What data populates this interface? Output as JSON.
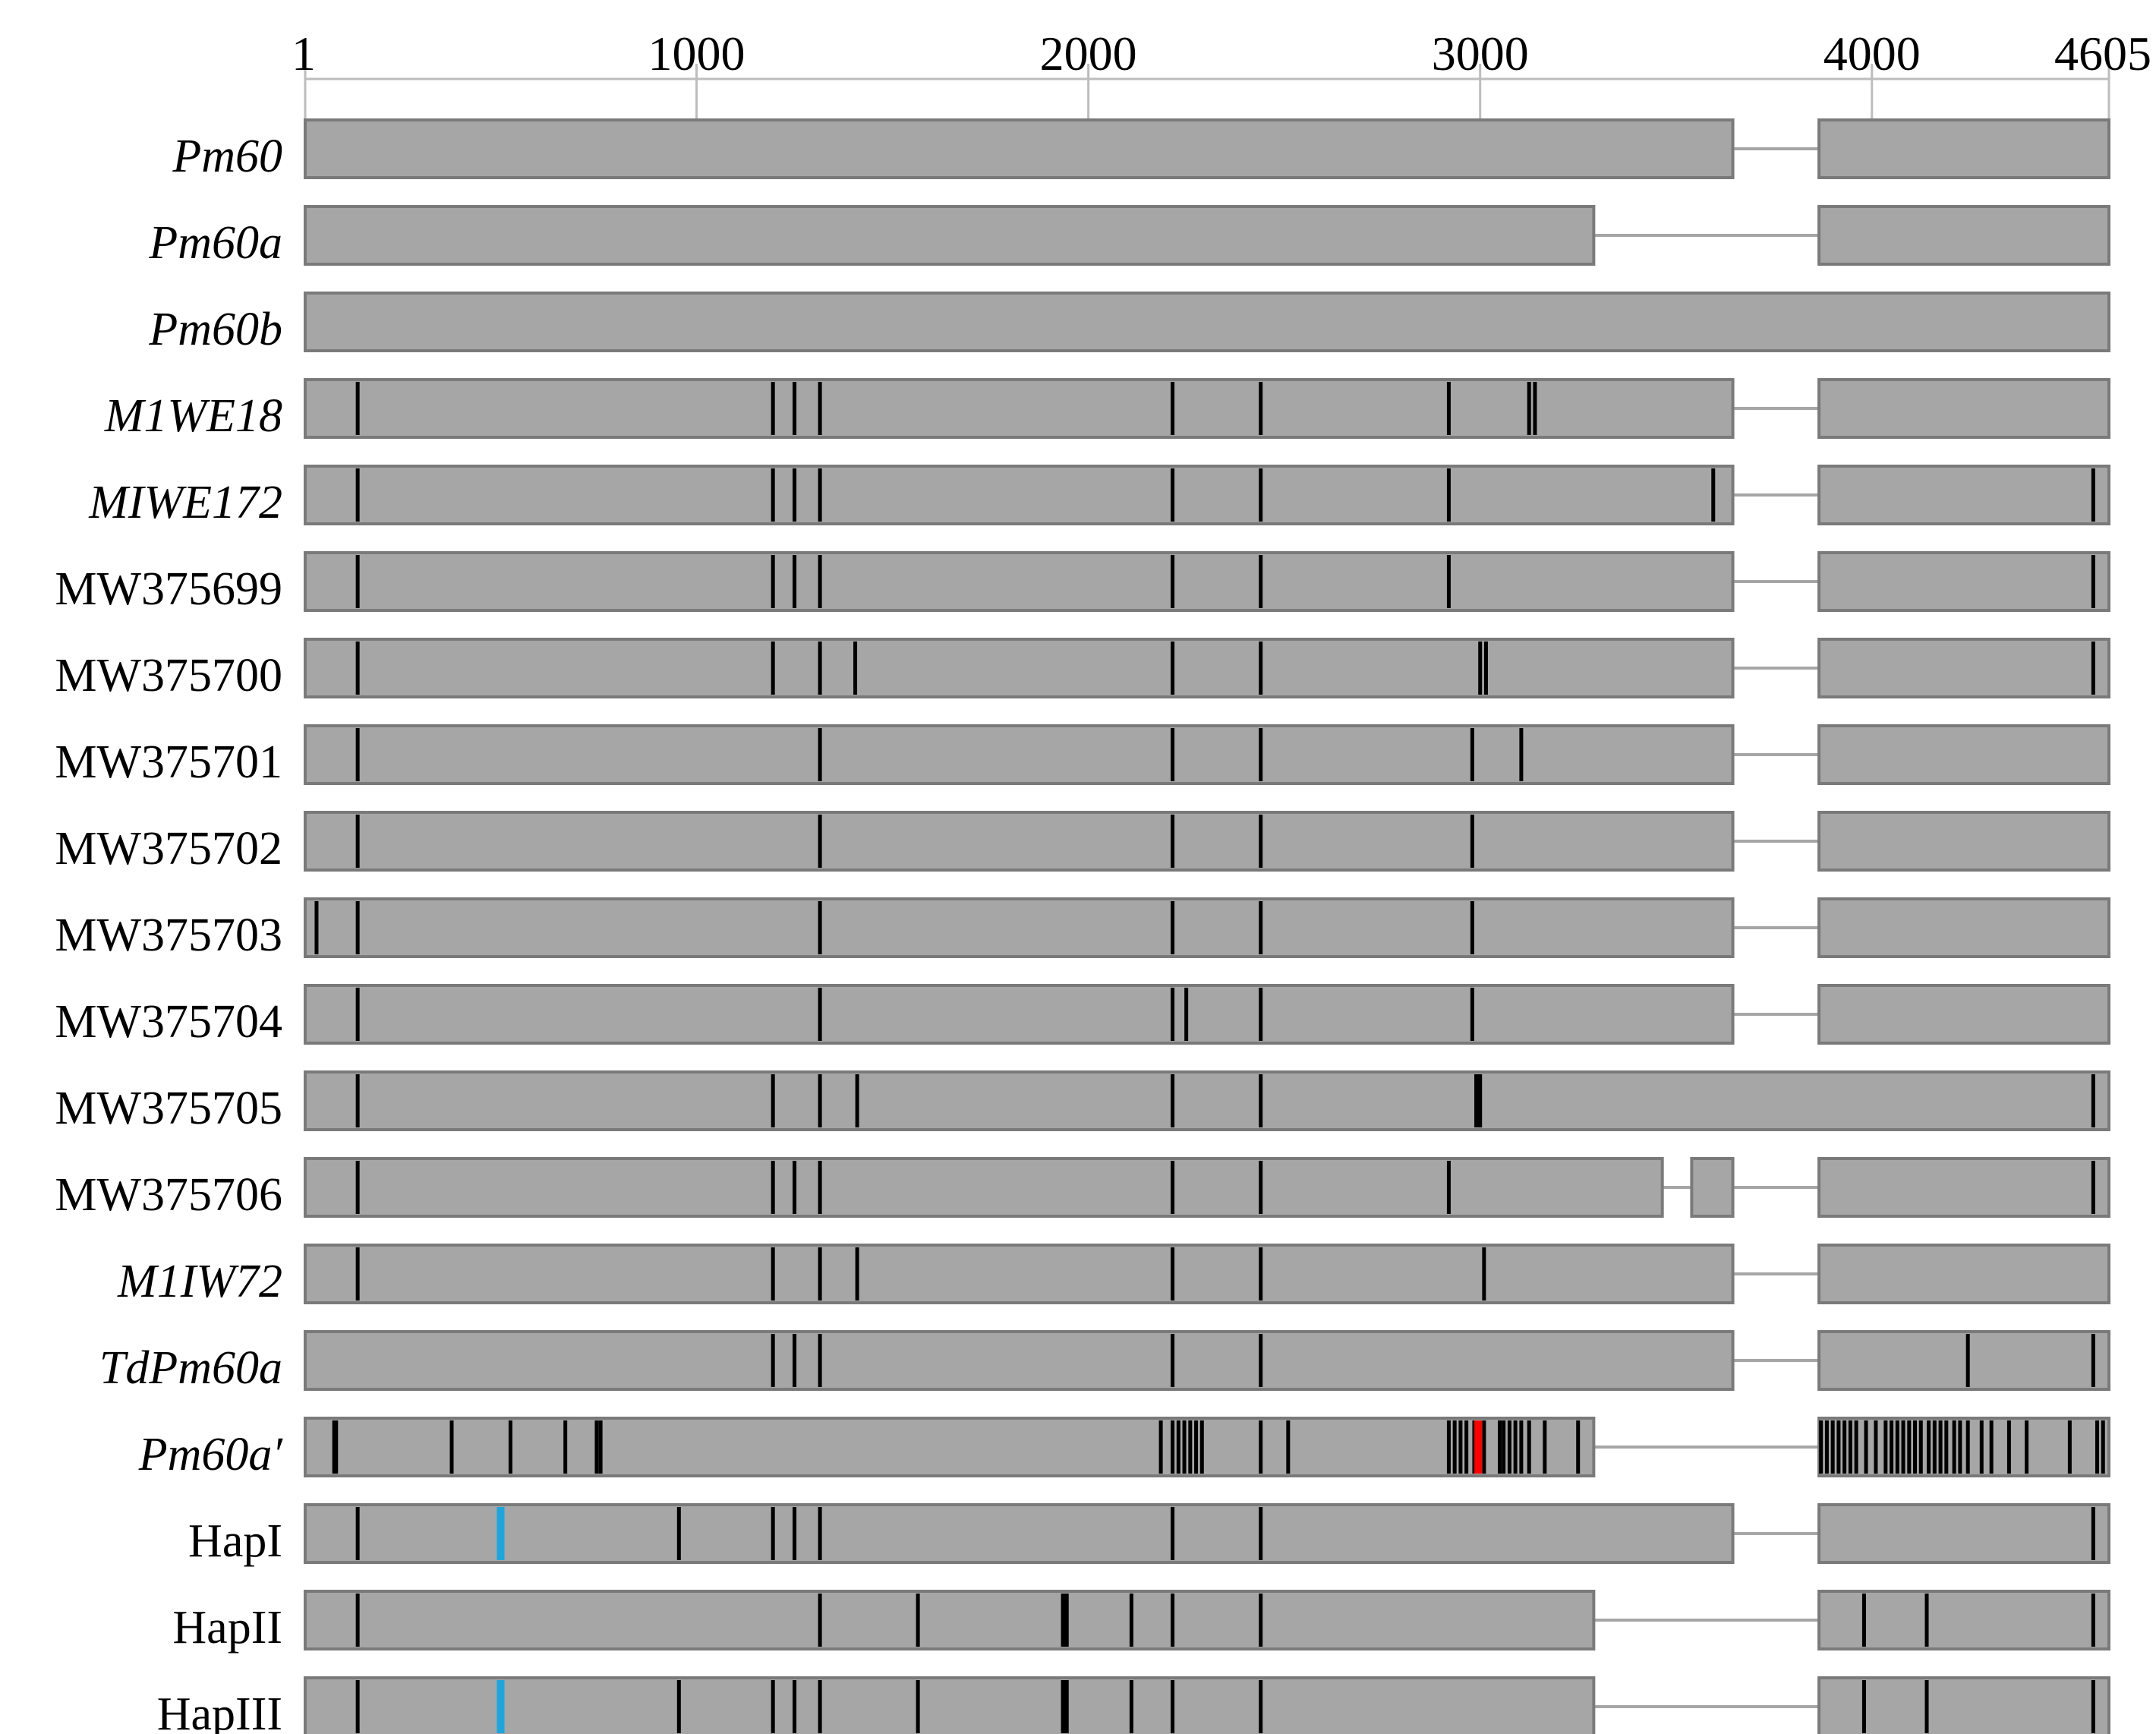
{
  "figure": {
    "axis": {
      "ticks": [
        {
          "label": "1",
          "pos": 1
        },
        {
          "label": "1000",
          "pos": 1000
        },
        {
          "label": "2000",
          "pos": 2000
        },
        {
          "label": "3000",
          "pos": 3000
        },
        {
          "label": "4000",
          "pos": 4000
        },
        {
          "label": "4605",
          "pos": 4605
        }
      ]
    },
    "colors": {
      "exon": "#a6a6a6",
      "exon_border": "#7a7a7a",
      "intron": "#a6a6a6",
      "snp": "#000000",
      "red_variant": "#ff0000",
      "cyan_variant": "#1aa7e0"
    },
    "rows": [
      {
        "name": "Pm60",
        "italic": true,
        "exons": [
          [
            1,
            3645
          ],
          [
            3865,
            4605
          ]
        ],
        "snps": []
      },
      {
        "name": "Pm60a",
        "italic": true,
        "exons": [
          [
            1,
            3290
          ],
          [
            3865,
            4605
          ]
        ],
        "snps": []
      },
      {
        "name": "Pm60b",
        "italic": true,
        "exons": [
          [
            1,
            4605
          ]
        ],
        "snps": []
      },
      {
        "name": "M1WE18",
        "italic": true,
        "exons": [
          [
            1,
            3645
          ],
          [
            3865,
            4605
          ]
        ],
        "snps": [
          135,
          1195,
          1250,
          1315,
          2215,
          2440,
          2920,
          3125,
          3140
        ]
      },
      {
        "name": "MIWE172",
        "italic": true,
        "exons": [
          [
            1,
            3645
          ],
          [
            3865,
            4605
          ]
        ],
        "snps": [
          135,
          1195,
          1250,
          1315,
          2215,
          2440,
          2920,
          3595,
          4565
        ]
      },
      {
        "name": "MW375699",
        "italic": false,
        "exons": [
          [
            1,
            3645
          ],
          [
            3865,
            4605
          ]
        ],
        "snps": [
          135,
          1195,
          1250,
          1315,
          2215,
          2440,
          2920,
          4565
        ]
      },
      {
        "name": "MW375700",
        "italic": false,
        "exons": [
          [
            1,
            3645
          ],
          [
            3865,
            4605
          ]
        ],
        "snps": [
          135,
          1195,
          1315,
          1405,
          2215,
          2440,
          3000,
          3015,
          4565
        ]
      },
      {
        "name": "MW375701",
        "italic": false,
        "exons": [
          [
            1,
            3645
          ],
          [
            3865,
            4605
          ]
        ],
        "snps": [
          135,
          1315,
          2215,
          2440,
          2980,
          3105
        ]
      },
      {
        "name": "MW375702",
        "italic": false,
        "exons": [
          [
            1,
            3645
          ],
          [
            3865,
            4605
          ]
        ],
        "snps": [
          135,
          1315,
          2215,
          2440,
          2980
        ]
      },
      {
        "name": "MW375703",
        "italic": false,
        "exons": [
          [
            1,
            3645
          ],
          [
            3865,
            4605
          ]
        ],
        "snps": [
          30,
          135,
          1315,
          2215,
          2440,
          2980
        ]
      },
      {
        "name": "MW375704",
        "italic": false,
        "exons": [
          [
            1,
            3645
          ],
          [
            3865,
            4605
          ]
        ],
        "snps": [
          135,
          1315,
          2215,
          2250,
          2440,
          2980
        ]
      },
      {
        "name": "MW375705",
        "italic": false,
        "exons": [
          [
            1,
            4605
          ]
        ],
        "snps": [
          135,
          1195,
          1315,
          1410,
          2215,
          2440,
          2990,
          2995,
          3000,
          4565
        ]
      },
      {
        "name": "MW375706",
        "italic": false,
        "exons": [
          [
            1,
            3465
          ],
          [
            3540,
            3645
          ],
          [
            3865,
            4605
          ]
        ],
        "snps": [
          135,
          1195,
          1250,
          1315,
          2215,
          2440,
          2920,
          4565
        ]
      },
      {
        "name": "M1IW72",
        "italic": true,
        "exons": [
          [
            1,
            3645
          ],
          [
            3865,
            4605
          ]
        ],
        "snps": [
          135,
          1195,
          1315,
          1410,
          2215,
          2440,
          3010
        ]
      },
      {
        "name": "TdPm60a",
        "italic": true,
        "exons": [
          [
            1,
            3645
          ],
          [
            3865,
            4605
          ]
        ],
        "snps": [
          1195,
          1250,
          1315,
          2215,
          2440,
          4245,
          4565
        ]
      },
      {
        "name": "Pm60a′",
        "italic": true,
        "exons": [
          [
            1,
            3290
          ],
          [
            3865,
            4605
          ]
        ],
        "snps": [
          75,
          80,
          375,
          525,
          665,
          745,
          755,
          2185,
          2215,
          2230,
          2245,
          2260,
          2275,
          2290,
          2440,
          2510,
          2920,
          2935,
          2950,
          2965,
          2985,
          3010,
          3050,
          3060,
          3075,
          3090,
          3105,
          3125,
          3165,
          3250,
          3870,
          3885,
          3900,
          3915,
          3930,
          3945,
          3960,
          3985,
          4010,
          4035,
          4050,
          4065,
          4080,
          4095,
          4110,
          4125,
          4145,
          4160,
          4175,
          4190,
          4210,
          4225,
          4245,
          4280,
          4305,
          4350,
          4395,
          4505,
          4575,
          4590
        ],
        "red": [
          2995
        ]
      },
      {
        "name": "HapI",
        "italic": false,
        "exons": [
          [
            1,
            3645
          ],
          [
            3865,
            4605
          ]
        ],
        "snps": [
          135,
          955,
          1195,
          1250,
          1315,
          2215,
          2440,
          4565
        ],
        "cyan": [
          500
        ]
      },
      {
        "name": "HapII",
        "italic": false,
        "exons": [
          [
            1,
            3290
          ],
          [
            3865,
            4605
          ]
        ],
        "snps": [
          135,
          1315,
          1565,
          1935,
          1940,
          1945,
          2110,
          2215,
          2440,
          3980,
          4140,
          4565
        ]
      },
      {
        "name": "HapIII",
        "italic": false,
        "exons": [
          [
            1,
            3290
          ],
          [
            3865,
            4605
          ]
        ],
        "snps": [
          135,
          955,
          1195,
          1250,
          1315,
          1565,
          1935,
          1940,
          1945,
          2110,
          2215,
          2440,
          3980,
          4140,
          4565
        ],
        "cyan": [
          500
        ]
      }
    ]
  }
}
